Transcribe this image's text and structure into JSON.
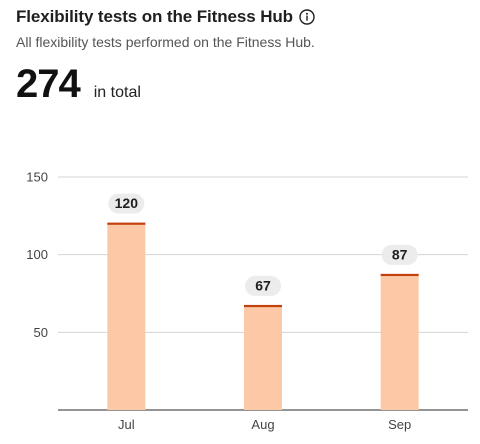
{
  "header": {
    "title": "Flexibility tests on the Fitness Hub",
    "info_icon": "info-circle-icon",
    "subtitle": "All flexibility tests performed on the Fitness Hub.",
    "total_value": "274",
    "total_suffix": "in total"
  },
  "colors": {
    "bar_fill": "#fcc8a6",
    "bar_top": "#c2410c",
    "grid": "#d4d4d4",
    "axis": "#555555",
    "pill": "#ececec"
  },
  "chart_data": {
    "type": "bar",
    "categories": [
      "Jul",
      "Aug",
      "Sep"
    ],
    "values": [
      120,
      67,
      87
    ],
    "title": "",
    "xlabel": "",
    "ylabel": "",
    "ylim": [
      0,
      150
    ],
    "yticks": [
      50,
      100,
      150
    ],
    "grid": true,
    "data_labels": true
  }
}
